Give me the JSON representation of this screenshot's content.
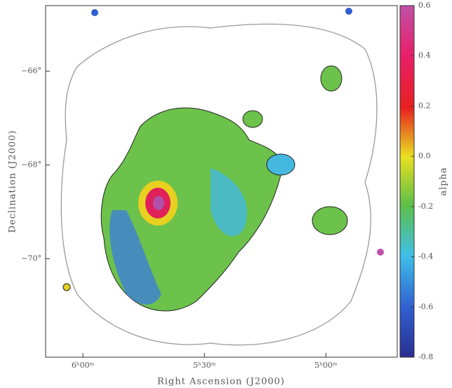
{
  "chart_data": {
    "type": "image",
    "xlabel": "Right Ascension (J2000)",
    "ylabel": "Declination (J2000)",
    "xlim": [
      92.3,
      70.6
    ],
    "xticks": [
      {
        "value": 90,
        "label": "6ʰ00ᵐ"
      },
      {
        "value": 82.5,
        "label": "5ʰ30ᵐ"
      },
      {
        "value": 75,
        "label": "5ʰ00ᵐ"
      }
    ],
    "ylim": [
      -72.1,
      -64.6
    ],
    "yticks": [
      {
        "value": -66,
        "label": "−66°"
      },
      {
        "value": -68,
        "label": "−68°"
      },
      {
        "value": -70,
        "label": "−70°"
      }
    ],
    "colorbar": {
      "label": "alpha",
      "lim": [
        -0.8,
        0.6
      ],
      "ticks": [
        -0.8,
        -0.6,
        -0.4,
        -0.2,
        {
          "value": 0,
          "label": "0.0"
        },
        0.2,
        0.4,
        0.6
      ]
    }
  }
}
